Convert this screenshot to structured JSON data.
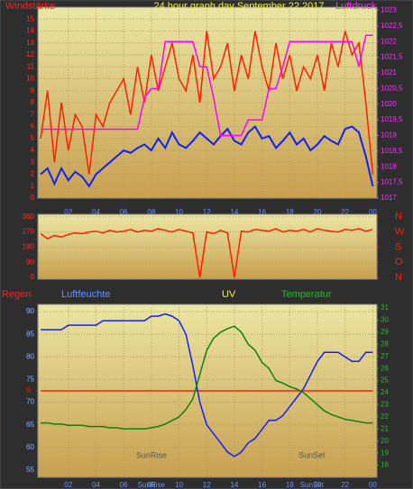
{
  "chart_data": [
    {
      "type": "line",
      "title": "24 hour graph day   September 22 2017",
      "ylabel": "Windstärke",
      "y2label": "Luftdruck",
      "grid": true,
      "x": [
        0,
        0.5,
        1,
        1.5,
        2,
        2.5,
        3,
        3.5,
        4,
        4.5,
        5,
        5.5,
        6,
        6.5,
        7,
        7.5,
        8,
        8.5,
        9,
        9.5,
        10,
        10.5,
        11,
        11.5,
        12,
        12.5,
        13,
        13.5,
        14,
        14.5,
        15,
        15.5,
        16,
        16.5,
        17,
        17.5,
        18,
        18.5,
        19,
        19.5,
        20,
        20.5,
        21,
        21.5,
        22,
        22.5,
        23,
        23.5,
        24
      ],
      "xlim": [
        -0.2,
        24.3
      ],
      "xticks": [
        {
          "value": 2,
          "label": "02"
        },
        {
          "value": 4,
          "label": "04"
        },
        {
          "value": 6,
          "label": "06"
        },
        {
          "value": 8,
          "label": "08"
        },
        10,
        12,
        14,
        16,
        18,
        20,
        22,
        {
          "value": 24,
          "label": "00"
        }
      ],
      "ylim": [
        0,
        16
      ],
      "yticks": [
        0,
        1,
        2,
        3,
        4,
        5,
        6,
        7,
        8,
        9,
        10,
        11,
        12,
        13,
        14,
        15
      ],
      "y2lim": [
        1017,
        1023.1
      ],
      "y2ticks": [
        1017,
        {
          "value": 1017.5,
          "label": "1017,5"
        },
        1018,
        {
          "value": 1018.5,
          "label": "1018,5"
        },
        1019,
        {
          "value": 1019.5,
          "label": "1019,5"
        },
        1020,
        {
          "value": 1020.5,
          "label": "1020,5"
        },
        1021,
        {
          "value": 1021.5,
          "label": "1021,5"
        },
        1022,
        {
          "value": 1022.5,
          "label": "1022,5"
        },
        1023
      ],
      "series": [
        {
          "color": "#ff2000",
          "values": [
            5,
            9,
            3,
            8,
            4,
            7,
            6,
            2,
            7,
            6,
            8,
            9,
            10,
            7,
            11,
            8,
            12,
            9,
            11,
            13,
            10,
            9,
            12,
            8,
            14,
            10,
            11,
            13,
            9,
            12,
            10,
            14,
            11,
            9,
            13,
            10,
            12,
            9,
            11,
            10,
            12,
            9,
            13,
            11,
            14,
            12,
            13,
            8,
            2
          ]
        },
        {
          "color": "#1020ff",
          "values": [
            2,
            2.5,
            1.2,
            2.5,
            1.5,
            2.2,
            1.8,
            1,
            2,
            2.5,
            3,
            3.5,
            4,
            3.8,
            4.2,
            4.5,
            4,
            5,
            4.2,
            5.5,
            4.5,
            4.2,
            4.8,
            5.5,
            5,
            4.5,
            5.2,
            5.8,
            4.8,
            4.5,
            5.5,
            6,
            5,
            5.2,
            4.2,
            4.8,
            5.5,
            4.5,
            5,
            4,
            4.5,
            5.2,
            4.8,
            4.5,
            5.8,
            6,
            5.5,
            3.5,
            1
          ]
        },
        {
          "color": "#ff00ff",
          "axis": "y2",
          "values": [
            1019.2,
            1019.2,
            1019.2,
            1019.2,
            1019.2,
            1019.2,
            1019.2,
            1019.2,
            1019.2,
            1019.2,
            1019.2,
            1019.2,
            1019.2,
            1019.2,
            1019.2,
            1020.2,
            1020.5,
            1020.5,
            1022,
            1022,
            1022,
            1022,
            1022,
            1021.2,
            1021.2,
            1020.2,
            1019,
            1019,
            1019,
            1019,
            1019.5,
            1019.5,
            1019.5,
            1020.5,
            1020.5,
            1021.2,
            1022,
            1022,
            1022,
            1022,
            1022,
            1022,
            1022,
            1022,
            1022,
            1022,
            1021.2,
            1022.2,
            1022.2
          ]
        }
      ]
    },
    {
      "type": "line",
      "grid": true,
      "x": [
        0,
        0.5,
        1,
        1.5,
        2,
        2.5,
        3,
        3.5,
        4,
        4.5,
        5,
        5.5,
        6,
        6.5,
        7,
        7.5,
        8,
        8.5,
        9,
        9.5,
        10,
        10.5,
        11,
        11.5,
        12,
        12.5,
        13,
        13.5,
        14,
        14.5,
        15,
        15.5,
        16,
        16.5,
        17,
        17.5,
        18,
        18.5,
        19,
        19.5,
        20,
        20.5,
        21,
        21.5,
        22,
        22.5,
        23,
        23.5,
        24
      ],
      "xlim": [
        -0.2,
        24.3
      ],
      "ylim": [
        -10,
        375
      ],
      "yticks": [
        0,
        90,
        180,
        270,
        360
      ],
      "y2lim": [
        -10,
        375
      ],
      "y2ticks": [
        {
          "value": 360,
          "label": "N"
        },
        {
          "value": 270,
          "label": "W"
        },
        {
          "value": 180,
          "label": "S"
        },
        {
          "value": 90,
          "label": "O"
        },
        {
          "value": 0,
          "label": "N"
        }
      ],
      "series": [
        {
          "color": "#ff2000",
          "values": [
            260,
            230,
            250,
            240,
            255,
            265,
            260,
            270,
            275,
            265,
            280,
            270,
            275,
            285,
            270,
            280,
            275,
            290,
            280,
            270,
            285,
            275,
            265,
            0,
            270,
            260,
            280,
            265,
            0,
            275,
            270,
            285,
            280,
            275,
            290,
            270,
            280,
            275,
            285,
            270,
            290,
            280,
            275,
            270,
            285,
            280,
            290,
            275,
            285
          ]
        }
      ]
    },
    {
      "type": "line",
      "grid": true,
      "uv_label": "UV",
      "x": [
        0,
        0.5,
        1,
        1.5,
        2,
        2.5,
        3,
        3.5,
        4,
        4.5,
        5,
        5.5,
        6,
        6.5,
        7,
        7.5,
        8,
        8.5,
        9,
        9.5,
        10,
        10.5,
        11,
        11.5,
        12,
        12.5,
        13,
        13.5,
        14,
        14.5,
        15,
        15.5,
        16,
        16.5,
        17,
        17.5,
        18,
        18.5,
        19,
        19.5,
        20,
        20.5,
        21,
        21.5,
        22,
        22.5,
        23,
        23.5,
        24
      ],
      "xlim": [
        -0.2,
        24.3
      ],
      "xticks": [
        {
          "value": 2,
          "label": "02"
        },
        {
          "value": 4,
          "label": "04"
        },
        {
          "value": 6,
          "label": "06"
        },
        {
          "value": 8,
          "label": "08"
        },
        10,
        12,
        14,
        16,
        18,
        20,
        22,
        {
          "value": 24,
          "label": "00"
        }
      ],
      "ylim": [
        53.4,
        91.6
      ],
      "yticks": [
        55,
        60,
        65,
        70,
        75,
        80,
        85,
        90
      ],
      "y2lim": [
        17,
        31.3
      ],
      "y2ticks": [
        18,
        19,
        20,
        21,
        22,
        23,
        24,
        25,
        26,
        27,
        28,
        29,
        30,
        31
      ],
      "y3lim": [
        -1,
        1
      ],
      "y3ticks": [
        0
      ],
      "annotations": [
        {
          "text": "SunRise",
          "x": 8
        },
        {
          "text": "SunSet",
          "x": 19.6
        }
      ],
      "series": [
        {
          "name": "Regen",
          "color": "#ff2000",
          "axis": "y3",
          "values": [
            0,
            0,
            0,
            0,
            0,
            0,
            0,
            0,
            0,
            0,
            0,
            0,
            0,
            0,
            0,
            0,
            0,
            0,
            0,
            0,
            0,
            0,
            0,
            0,
            0,
            0,
            0,
            0,
            0,
            0,
            0,
            0,
            0,
            0,
            0,
            0,
            0,
            0,
            0,
            0,
            0,
            0,
            0,
            0,
            0,
            0,
            0,
            0,
            0
          ]
        },
        {
          "name": "Luftfeuchte",
          "color": "#1020ff",
          "values": [
            86,
            86,
            86,
            86,
            87,
            87,
            87,
            87,
            87,
            88,
            88,
            88,
            88,
            88,
            88,
            88,
            89,
            89,
            89.5,
            89,
            88,
            85,
            78,
            70,
            65,
            63,
            61,
            59,
            58,
            59,
            61,
            62,
            64,
            66,
            66,
            67,
            69,
            71,
            73,
            76,
            79,
            81,
            81,
            81,
            80,
            79,
            79,
            81,
            81
          ]
        },
        {
          "name": "Temperatur",
          "color": "#108010",
          "axis": "y2",
          "values": [
            21.5,
            21.5,
            21.4,
            21.4,
            21.3,
            21.3,
            21.3,
            21.2,
            21.2,
            21.2,
            21.1,
            21.1,
            21.0,
            21.0,
            21.0,
            21.0,
            21.1,
            21.2,
            21.4,
            21.7,
            22.0,
            22.6,
            23.5,
            25.5,
            27.5,
            28.5,
            29.0,
            29.3,
            29.5,
            29.0,
            28.0,
            27.5,
            26.5,
            26.0,
            25.0,
            24.8,
            24.5,
            24.3,
            24.0,
            23.5,
            23.0,
            22.5,
            22.2,
            22.0,
            21.8,
            21.7,
            21.6,
            21.5,
            21.5
          ]
        }
      ]
    }
  ]
}
